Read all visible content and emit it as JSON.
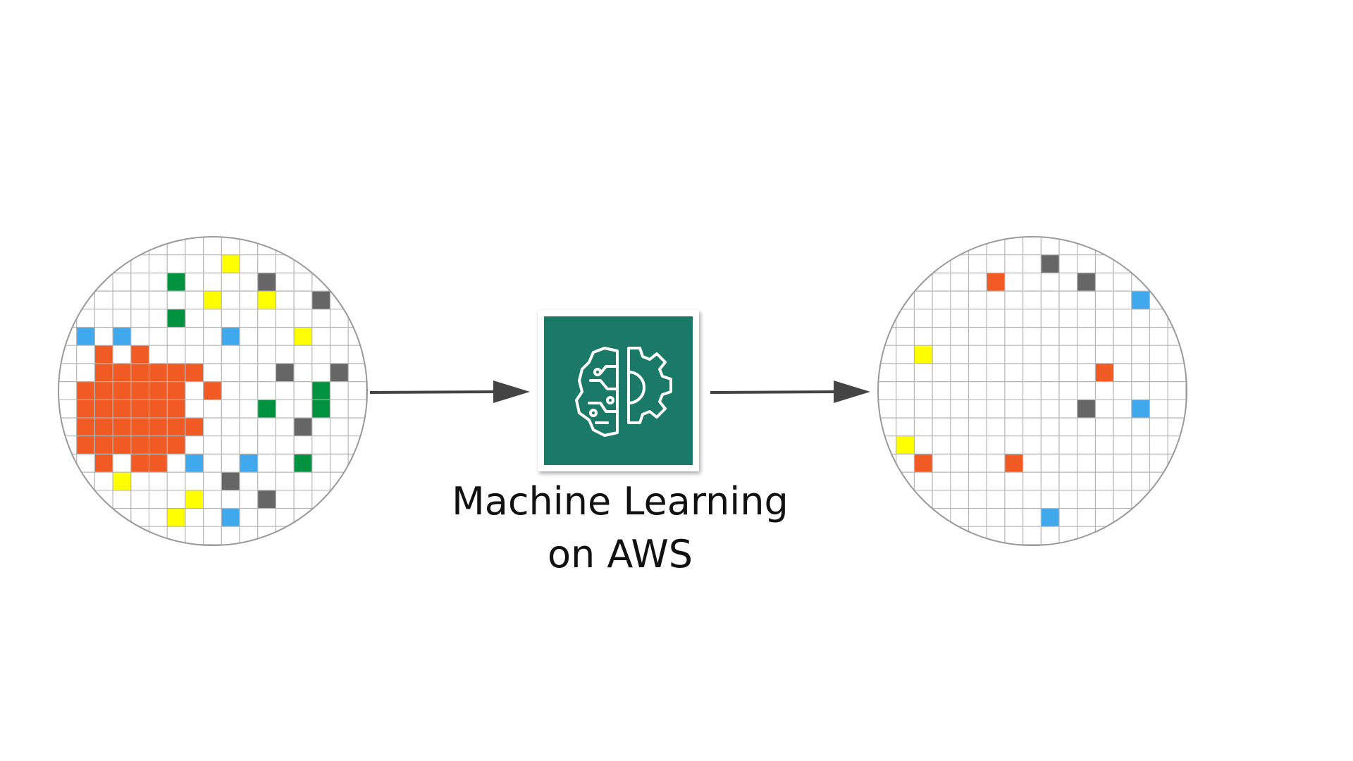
{
  "title": {
    "line1": "Machine Learning",
    "line2": "on AWS"
  },
  "colors": {
    "background": "#ffffff",
    "grid": "#b5b5b5",
    "outline": "#9a9a9a",
    "arrow": "#444444",
    "service_tile": "#1b7a67",
    "icon_stroke": "#ffffff",
    "cell_colors": {
      "orange": "#f15a22",
      "yellow": "#ffff00",
      "green": "#00923f",
      "blue": "#40a9ee",
      "gray": "#666666"
    }
  },
  "wafer_grid_size": 17,
  "input_wafer": {
    "name": "input-wafer",
    "cells": [
      {
        "col": 9,
        "row": 1,
        "color": "yellow"
      },
      {
        "col": 6,
        "row": 2,
        "color": "green"
      },
      {
        "col": 11,
        "row": 2,
        "color": "gray"
      },
      {
        "col": 8,
        "row": 3,
        "color": "yellow"
      },
      {
        "col": 11,
        "row": 3,
        "color": "yellow"
      },
      {
        "col": 14,
        "row": 3,
        "color": "gray"
      },
      {
        "col": 6,
        "row": 4,
        "color": "green"
      },
      {
        "col": 1,
        "row": 5,
        "color": "blue"
      },
      {
        "col": 3,
        "row": 5,
        "color": "blue"
      },
      {
        "col": 9,
        "row": 5,
        "color": "blue"
      },
      {
        "col": 13,
        "row": 5,
        "color": "yellow"
      },
      {
        "col": 2,
        "row": 6,
        "color": "orange"
      },
      {
        "col": 4,
        "row": 6,
        "color": "orange"
      },
      {
        "col": 2,
        "row": 7,
        "color": "orange"
      },
      {
        "col": 3,
        "row": 7,
        "color": "orange"
      },
      {
        "col": 4,
        "row": 7,
        "color": "orange"
      },
      {
        "col": 5,
        "row": 7,
        "color": "orange"
      },
      {
        "col": 6,
        "row": 7,
        "color": "orange"
      },
      {
        "col": 7,
        "row": 7,
        "color": "orange"
      },
      {
        "col": 12,
        "row": 7,
        "color": "gray"
      },
      {
        "col": 15,
        "row": 7,
        "color": "gray"
      },
      {
        "col": 1,
        "row": 8,
        "color": "orange"
      },
      {
        "col": 2,
        "row": 8,
        "color": "orange"
      },
      {
        "col": 3,
        "row": 8,
        "color": "orange"
      },
      {
        "col": 4,
        "row": 8,
        "color": "orange"
      },
      {
        "col": 5,
        "row": 8,
        "color": "orange"
      },
      {
        "col": 6,
        "row": 8,
        "color": "orange"
      },
      {
        "col": 8,
        "row": 8,
        "color": "orange"
      },
      {
        "col": 14,
        "row": 8,
        "color": "green"
      },
      {
        "col": 1,
        "row": 9,
        "color": "orange"
      },
      {
        "col": 2,
        "row": 9,
        "color": "orange"
      },
      {
        "col": 3,
        "row": 9,
        "color": "orange"
      },
      {
        "col": 4,
        "row": 9,
        "color": "orange"
      },
      {
        "col": 5,
        "row": 9,
        "color": "orange"
      },
      {
        "col": 6,
        "row": 9,
        "color": "orange"
      },
      {
        "col": 11,
        "row": 9,
        "color": "green"
      },
      {
        "col": 14,
        "row": 9,
        "color": "green"
      },
      {
        "col": 1,
        "row": 10,
        "color": "orange"
      },
      {
        "col": 2,
        "row": 10,
        "color": "orange"
      },
      {
        "col": 3,
        "row": 10,
        "color": "orange"
      },
      {
        "col": 4,
        "row": 10,
        "color": "orange"
      },
      {
        "col": 5,
        "row": 10,
        "color": "orange"
      },
      {
        "col": 6,
        "row": 10,
        "color": "orange"
      },
      {
        "col": 7,
        "row": 10,
        "color": "orange"
      },
      {
        "col": 13,
        "row": 10,
        "color": "gray"
      },
      {
        "col": 1,
        "row": 11,
        "color": "orange"
      },
      {
        "col": 2,
        "row": 11,
        "color": "orange"
      },
      {
        "col": 3,
        "row": 11,
        "color": "orange"
      },
      {
        "col": 4,
        "row": 11,
        "color": "orange"
      },
      {
        "col": 5,
        "row": 11,
        "color": "orange"
      },
      {
        "col": 6,
        "row": 11,
        "color": "orange"
      },
      {
        "col": 2,
        "row": 12,
        "color": "orange"
      },
      {
        "col": 4,
        "row": 12,
        "color": "orange"
      },
      {
        "col": 5,
        "row": 12,
        "color": "orange"
      },
      {
        "col": 7,
        "row": 12,
        "color": "blue"
      },
      {
        "col": 10,
        "row": 12,
        "color": "blue"
      },
      {
        "col": 13,
        "row": 12,
        "color": "green"
      },
      {
        "col": 3,
        "row": 13,
        "color": "yellow"
      },
      {
        "col": 9,
        "row": 13,
        "color": "gray"
      },
      {
        "col": 7,
        "row": 14,
        "color": "yellow"
      },
      {
        "col": 11,
        "row": 14,
        "color": "gray"
      },
      {
        "col": 6,
        "row": 15,
        "color": "yellow"
      },
      {
        "col": 9,
        "row": 15,
        "color": "blue"
      }
    ]
  },
  "output_wafer": {
    "name": "output-wafer",
    "cells": [
      {
        "col": 9,
        "row": 1,
        "color": "gray"
      },
      {
        "col": 6,
        "row": 2,
        "color": "orange"
      },
      {
        "col": 11,
        "row": 2,
        "color": "gray"
      },
      {
        "col": 14,
        "row": 3,
        "color": "blue"
      },
      {
        "col": 2,
        "row": 6,
        "color": "yellow"
      },
      {
        "col": 12,
        "row": 7,
        "color": "orange"
      },
      {
        "col": 11,
        "row": 9,
        "color": "gray"
      },
      {
        "col": 14,
        "row": 9,
        "color": "blue"
      },
      {
        "col": 1,
        "row": 11,
        "color": "yellow"
      },
      {
        "col": 2,
        "row": 12,
        "color": "orange"
      },
      {
        "col": 7,
        "row": 12,
        "color": "orange"
      },
      {
        "col": 9,
        "row": 15,
        "color": "blue"
      }
    ]
  },
  "service": {
    "icon": "brain-gear-icon"
  }
}
